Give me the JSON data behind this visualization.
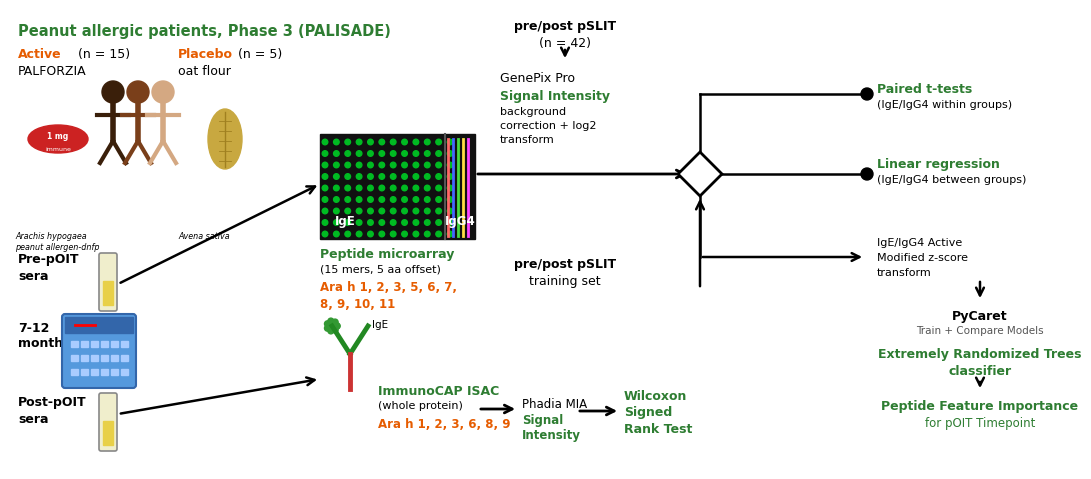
{
  "green": "#2e7d32",
  "orange": "#e65c00",
  "black": "#000000",
  "dark_gray": "#555555",
  "bg": "#ffffff",
  "title": "Peanut allergic patients, Phase 3 (PALISADE)",
  "active": "Active",
  "active_n": "(n = 15)",
  "active_drug": "PALFORZIA",
  "placebo": "Placebo",
  "placebo_n": "(n = 5)",
  "placebo_drug": "oat flour",
  "species1": "Arachis hypogaea",
  "species1b": "peanut allergen-dnfp",
  "species2": "Avena sativa",
  "pre_poit": "Pre-pOIT",
  "sera": "sera",
  "months": "7-12\nmonths",
  "post_poit": "Post-pOIT",
  "pslit_top": "pre/post pSLIT",
  "pslit_n": "(n = 42)",
  "microarray_title": "Peptide microarray",
  "microarray_sub": "(15 mers, 5 aa offset)",
  "ara_micro": "Ara h 1, 2, 3, 5, 6, 7,",
  "ara_micro2": "8, 9, 10, 11",
  "genepix": "GenePix Pro",
  "signal": "Signal Intensity",
  "bg_corr": "background",
  "corr2": "correction + log2",
  "transform": "transform",
  "paired": "Paired t-tests",
  "paired_sub": "(IgE/IgG4 within groups)",
  "linreg": "Linear regression",
  "linreg_sub": "(IgE/IgG4 between groups)",
  "zscore1": "IgE/IgG4 Active",
  "zscore2": "Modified z-score",
  "zscore3": "transform",
  "pslit_train": "pre/post pSLIT",
  "pslit_train2": "training set",
  "pycaret": "PyCaret",
  "train_compare": "Train + Compare Models",
  "ert1": "Extremely Randomized Trees",
  "ert2": "classifier",
  "peptide_fi1": "Peptide Feature Importance",
  "peptide_fi2": "for pOIT Timepoint",
  "immuno": "ImmunoCAP ISAC",
  "immuno_sub": "(whole protein)",
  "ara_isac": "Ara h 1, 2, 3, 6, 8, 9",
  "phadia": "Phadia MIA",
  "signal_int": "Signal\nIntensity",
  "wilcoxon1": "Wilcoxon",
  "wilcoxon2": "Signed",
  "wilcoxon3": "Rank Test"
}
